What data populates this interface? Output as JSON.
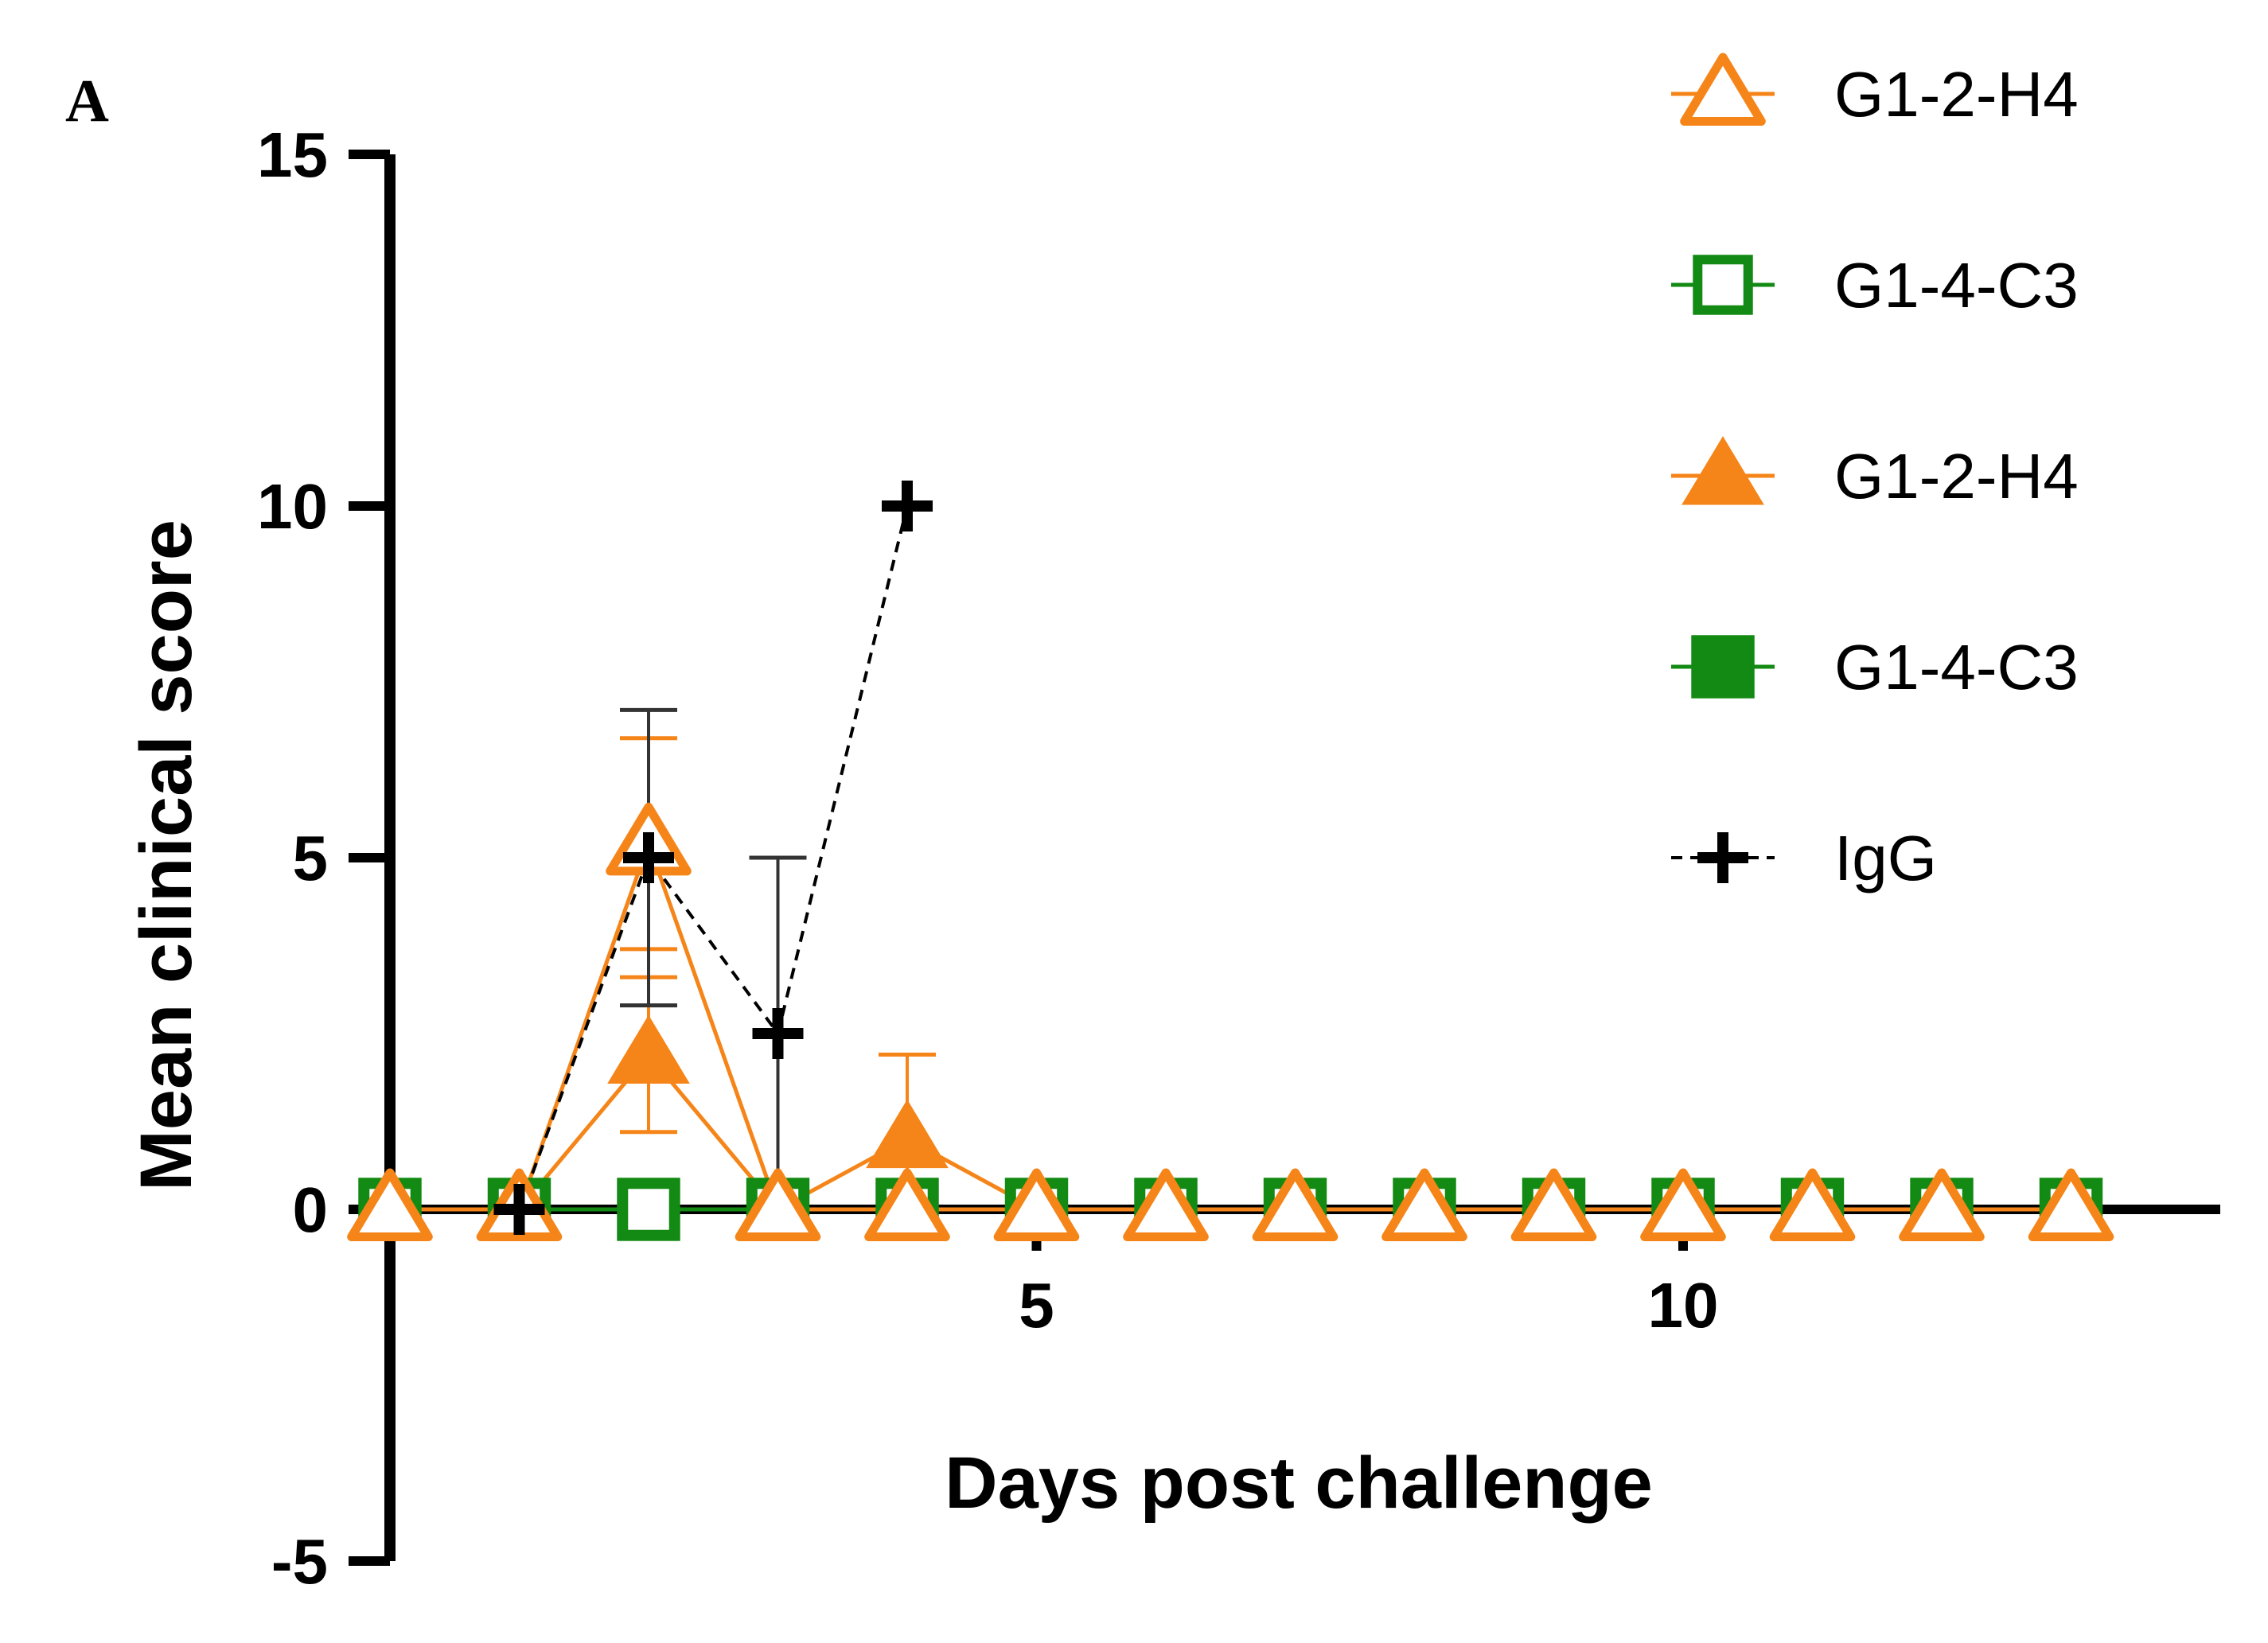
{
  "panel_label": "A",
  "chart_data": {
    "type": "line",
    "title": "",
    "xlabel": "Days post challenge",
    "ylabel": "Mean clinical score",
    "xlim": [
      0,
      14.5
    ],
    "ylim": [
      -5,
      15
    ],
    "x_ticks": [
      5,
      10
    ],
    "x_tick_labels": [
      "5",
      "10"
    ],
    "y_ticks": [
      -5,
      0,
      5,
      10,
      15
    ],
    "y_tick_labels": [
      "-5",
      "0",
      "5",
      "10",
      "15"
    ],
    "grid": false,
    "legend_position": "top-right",
    "x": [
      0,
      1,
      2,
      3,
      4,
      5,
      6,
      7,
      8,
      9,
      10,
      11,
      12,
      13
    ],
    "series": [
      {
        "name": "G1-2-H4",
        "marker": "triangle-open",
        "color": "#f58518",
        "line": "solid",
        "x": [
          0,
          1,
          2,
          3,
          4,
          5,
          6,
          7,
          8,
          9,
          10,
          11,
          12,
          13
        ],
        "values": [
          0,
          0,
          5.2,
          0,
          0,
          0,
          0,
          0,
          0,
          0,
          0,
          0,
          0,
          0
        ],
        "err": [
          0,
          0,
          1.5,
          0,
          0,
          0,
          0,
          0,
          0,
          0,
          0,
          0,
          0,
          0
        ]
      },
      {
        "name": "G1-4-C3",
        "marker": "square-open",
        "color": "#138a13",
        "line": "solid",
        "x": [
          0,
          1,
          2,
          3,
          4,
          5,
          6,
          7,
          8,
          9,
          10,
          11,
          12,
          13
        ],
        "values": [
          0,
          0,
          0,
          0,
          0,
          0,
          0,
          0,
          0,
          0,
          0,
          0,
          0,
          0
        ],
        "err": [
          0,
          0,
          0,
          0,
          0,
          0,
          0,
          0,
          0,
          0,
          0,
          0,
          0,
          0
        ]
      },
      {
        "name": "G1-2-H4",
        "marker": "triangle-filled",
        "color": "#f58518",
        "line": "solid",
        "x": [
          0,
          1,
          2,
          3,
          4,
          5,
          6,
          7,
          8,
          9,
          10,
          11,
          12,
          13
        ],
        "values": [
          0,
          0,
          2.2,
          0,
          1.0,
          0,
          0,
          0,
          0,
          0,
          0,
          0,
          0,
          0
        ],
        "err": [
          0,
          0,
          1.1,
          0,
          1.2,
          0,
          0,
          0,
          0,
          0,
          0,
          0,
          0,
          0
        ]
      },
      {
        "name": "G1-4-C3",
        "marker": "square-filled",
        "color": "#138a13",
        "line": "solid",
        "x": [
          0,
          1,
          2,
          3,
          4,
          5,
          6,
          7,
          8,
          9,
          10,
          11,
          12,
          13
        ],
        "values": [
          0,
          0,
          0,
          0,
          0,
          0,
          0,
          0,
          0,
          0,
          0,
          0,
          0,
          0
        ],
        "err": [
          0,
          0,
          0,
          0,
          0,
          0,
          0,
          0,
          0,
          0,
          0,
          0,
          0,
          0
        ]
      },
      {
        "name": "IgG",
        "marker": "plus",
        "color": "#000000",
        "line": "dashed",
        "x": [
          1,
          2,
          3,
          4
        ],
        "values": [
          0,
          5.0,
          2.5,
          10.0
        ],
        "err": [
          0,
          2.1,
          2.5,
          0
        ]
      }
    ]
  }
}
